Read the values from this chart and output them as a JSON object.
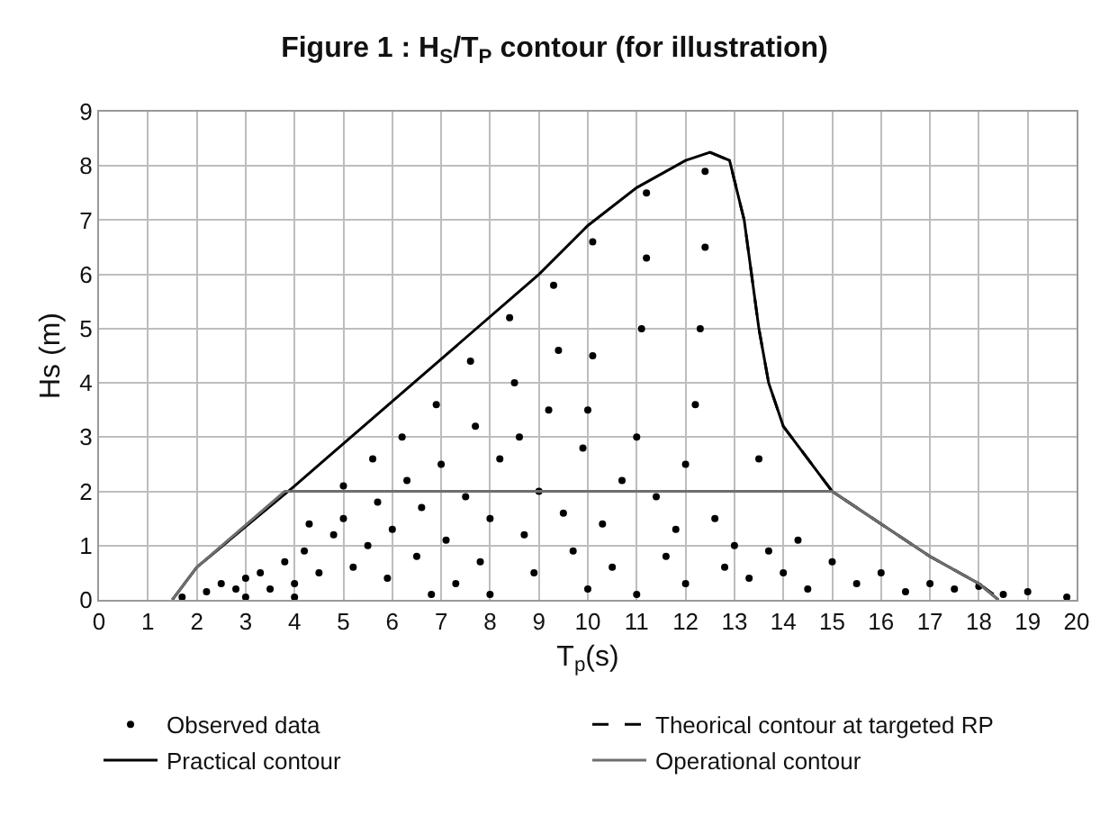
{
  "chart_data": {
    "type": "line",
    "title": "Figure 1 : H$_{S}$/T$_{P}$ contour (for illustration)",
    "xlabel": "T$_{p}$(s)",
    "ylabel": "Hs (m)",
    "xlim": [
      0,
      20
    ],
    "xticks": [
      0,
      1,
      2,
      3,
      4,
      5,
      6,
      7,
      8,
      9,
      10,
      11,
      12,
      13,
      14,
      15,
      16,
      17,
      18,
      19,
      20
    ],
    "ylim": [
      0,
      9
    ],
    "yticks": [
      0,
      1,
      2,
      3,
      4,
      5,
      6,
      7,
      8,
      9
    ],
    "grid": true,
    "legend": "bottom",
    "series": [
      {
        "name": "Observed data",
        "type": "scatter",
        "marker": "circle",
        "color": "#000000",
        "x": [
          1.7,
          2.2,
          2.5,
          2.8,
          3,
          3.3,
          3.5,
          3.8,
          4,
          4.2,
          4.3,
          4.5,
          4.8,
          5,
          5,
          5.2,
          5.5,
          5.6,
          5.7,
          5.9,
          6,
          6.2,
          6.3,
          6.5,
          6.6,
          6.9,
          7,
          7.1,
          7.3,
          7.5,
          7.6,
          7.7,
          7.8,
          8,
          8.2,
          8.4,
          8.5,
          8.6,
          8.7,
          8.9,
          9,
          9.2,
          9.3,
          9.4,
          9.5,
          9.7,
          9.9,
          10.1,
          10.1,
          10,
          10.3,
          10.5,
          10.7,
          11,
          11.1,
          11.2,
          11.2,
          11.4,
          11.6,
          11.8,
          12,
          12.2,
          12.4,
          12.4,
          12.3,
          12.6,
          12.8,
          13,
          13.3,
          13.5,
          13.7,
          14,
          14.3,
          14.5,
          15,
          15.5,
          16,
          16.5,
          17,
          17.5,
          18,
          18.5,
          19,
          19.8,
          6.8,
          8,
          10,
          11,
          12,
          4,
          3
        ],
        "values": [
          0.05,
          0.15,
          0.3,
          0.2,
          0.4,
          0.5,
          0.2,
          0.7,
          0.3,
          0.9,
          1.4,
          0.5,
          1.2,
          2.1,
          1.5,
          0.6,
          1.0,
          2.6,
          1.8,
          0.4,
          1.3,
          3.0,
          2.2,
          0.8,
          1.7,
          3.6,
          2.5,
          1.1,
          0.3,
          1.9,
          4.4,
          3.2,
          0.7,
          1.5,
          2.6,
          5.2,
          4.0,
          3.0,
          1.2,
          0.5,
          2.0,
          3.5,
          5.8,
          4.6,
          1.6,
          0.9,
          2.8,
          6.6,
          4.5,
          3.5,
          1.4,
          0.6,
          2.2,
          3.0,
          5.0,
          7.5,
          6.3,
          1.9,
          0.8,
          1.3,
          2.5,
          3.6,
          7.9,
          6.5,
          5.0,
          1.5,
          0.6,
          1.0,
          0.4,
          2.6,
          0.9,
          0.5,
          1.1,
          0.2,
          0.7,
          0.3,
          0.5,
          0.15,
          0.3,
          0.2,
          0.25,
          0.1,
          0.15,
          0.05,
          0.1,
          0.1,
          0.2,
          0.1,
          0.3,
          0.05,
          0.05
        ]
      },
      {
        "name": "Theorical contour at targeted RP",
        "line_style": "dashed",
        "color": "#000000",
        "x": [
          12.5,
          12.9,
          13.2,
          13.5,
          13.7,
          14,
          15,
          16,
          17,
          18,
          18.3
        ],
        "values": [
          8.25,
          8.1,
          7.0,
          5.0,
          4.0,
          3.2,
          2.0,
          1.4,
          0.8,
          0.3,
          0.1
        ]
      },
      {
        "name": "Practical contour",
        "line_style": "solid",
        "color": "#000000",
        "x": [
          1.5,
          2,
          4,
          9,
          10,
          11,
          12,
          12.5,
          12.9,
          13.2,
          13.5,
          13.7,
          14,
          15,
          16,
          17,
          18,
          18.4
        ],
        "values": [
          0,
          0.6,
          2.1,
          6.0,
          6.9,
          7.6,
          8.1,
          8.25,
          8.1,
          7.0,
          5.0,
          4.0,
          3.2,
          2.0,
          1.4,
          0.8,
          0.3,
          0
        ]
      },
      {
        "name": "Operational contour",
        "line_style": "solid",
        "color": "#6e6e6e",
        "x": [
          1.5,
          2,
          3.8,
          15,
          16,
          17,
          18,
          18.4
        ],
        "values": [
          0,
          0.6,
          2.0,
          2.0,
          1.4,
          0.8,
          0.3,
          0
        ]
      }
    ]
  }
}
